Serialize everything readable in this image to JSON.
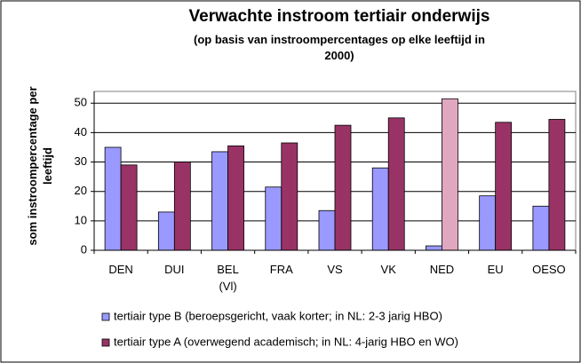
{
  "chart_data": {
    "type": "bar",
    "title": "Verwachte instroom tertiair onderwijs",
    "subtitle": "(op basis van instroompercentages op elke leeftijd in 2000)",
    "y_label": "som instroompercentage per leeftijd",
    "categories": [
      "DEN",
      "DUI",
      "BEL (Vl)",
      "FRA",
      "VS",
      "VK",
      "NED",
      "EU",
      "OESO"
    ],
    "series": [
      {
        "name": "tertiair type B (beroepsgericht, vaak korter; in NL: 2-3 jarig HBO)",
        "color": "#9999ff",
        "values": [
          35,
          13,
          33.5,
          21.5,
          13.5,
          28,
          1.5,
          18.5,
          15
        ]
      },
      {
        "name": "tertiair type A (overwegend academisch; in NL: 4-jarig HBO en WO)",
        "color": "#993366",
        "point_colors": [
          "#993366",
          "#993366",
          "#993366",
          "#993366",
          "#993366",
          "#993366",
          "#e0a8c0",
          "#993366",
          "#993366"
        ],
        "values": [
          29,
          30,
          35.5,
          36.5,
          42.5,
          45,
          51.5,
          43.5,
          44.5
        ]
      }
    ],
    "ylim": [
      0,
      54
    ],
    "yticks": [
      0,
      10,
      20,
      30,
      40,
      50
    ],
    "grid": true
  }
}
